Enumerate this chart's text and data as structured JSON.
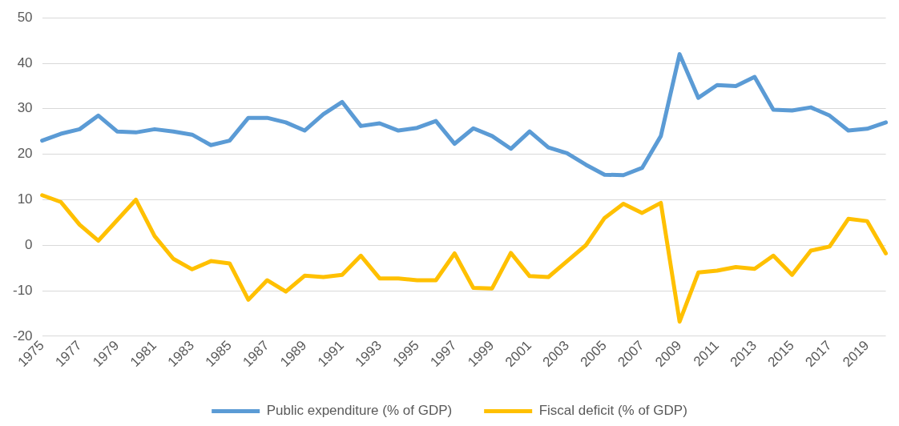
{
  "chart_data": {
    "type": "line",
    "categories": [
      "1975",
      null,
      "1977",
      null,
      "1979",
      null,
      "1981",
      null,
      "1983",
      null,
      "1985",
      null,
      "1987",
      null,
      "1989",
      null,
      "1991",
      null,
      "1993",
      null,
      "1995",
      null,
      "1997",
      null,
      "1999",
      null,
      "2001",
      null,
      "2003",
      null,
      "2005",
      null,
      "2007",
      null,
      "2009",
      null,
      "2011",
      null,
      "2013",
      null,
      "2015",
      null,
      "2017",
      null,
      "2019",
      null
    ],
    "series": [
      {
        "name": "Public expenditure (% of GDP)",
        "color": "#5b9bd5",
        "values": [
          23,
          24.5,
          25.5,
          28.5,
          25,
          24.8,
          25.5,
          25,
          24.3,
          22,
          23,
          28,
          28,
          27,
          25.2,
          28.8,
          31.5,
          26.2,
          26.8,
          25.2,
          25.8,
          27.3,
          22.3,
          25.7,
          24,
          21.2,
          25,
          21.5,
          20.2,
          17.7,
          15.5,
          15.4,
          17,
          24,
          42,
          32.4,
          35.2,
          35,
          37,
          29.8,
          29.6,
          30.3,
          28.5,
          25.2,
          25.6,
          27
        ]
      },
      {
        "name": "Fiscal deficit (% of GDP)",
        "color": "#ffc000",
        "values": [
          11,
          9.5,
          4.5,
          1,
          5.5,
          10,
          2,
          -3,
          -5.3,
          -3.5,
          -4,
          -12,
          -7.7,
          -10.2,
          -6.7,
          -7,
          -6.5,
          -2.3,
          -7.3,
          -7.3,
          -7.7,
          -7.7,
          -1.8,
          -9.4,
          -9.5,
          -1.7,
          -6.8,
          -7,
          -3.5,
          0,
          6,
          9.1,
          7.1,
          9.3,
          -16.8,
          -6,
          -5.6,
          -4.8,
          -5.2,
          -2.3,
          -6.5,
          -1.2,
          -0.3,
          5.8,
          5.3,
          -1.8
        ]
      }
    ],
    "ylim": [
      -20,
      50
    ],
    "yticks": [
      -20,
      -10,
      0,
      10,
      20,
      30,
      40,
      50
    ],
    "grid": "y",
    "legend": "bottom",
    "marker": "none",
    "line_style": "solid"
  }
}
